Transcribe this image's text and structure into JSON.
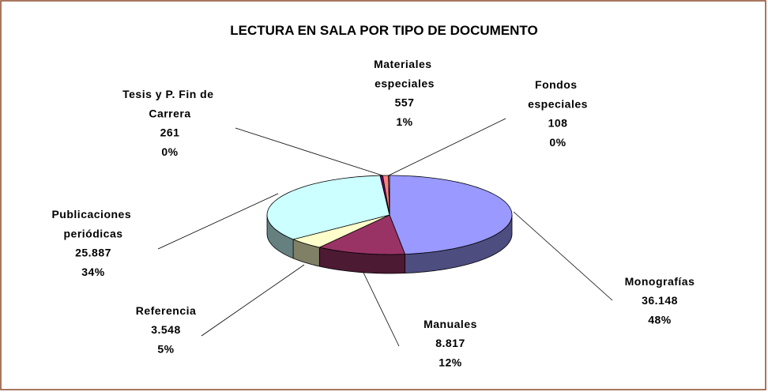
{
  "chart_data": {
    "type": "pie3d",
    "title": "LECTURA EN SALA POR TIPO DE DOCUMENTO",
    "categories": [
      "Monografías",
      "Manuales",
      "Referencia",
      "Publicaciones periódicas",
      "Tesis y P. Fin de Carrera",
      "Materiales especiales",
      "Fondos especiales"
    ],
    "values": [
      36148,
      8817,
      3548,
      25887,
      261,
      557,
      108
    ],
    "value_labels": [
      "36.148",
      "8.817",
      "3.548",
      "25.887",
      "261",
      "557",
      "108"
    ],
    "percent_values": [
      48,
      12,
      5,
      34,
      0,
      1,
      0
    ],
    "percent_labels": [
      "48%",
      "12%",
      "5%",
      "34%",
      "0%",
      "1%",
      "0%"
    ],
    "colors": [
      "#9999ff",
      "#993366",
      "#ffffcc",
      "#ccffff",
      "#660066",
      "#ff8080",
      "#ff9966"
    ]
  }
}
